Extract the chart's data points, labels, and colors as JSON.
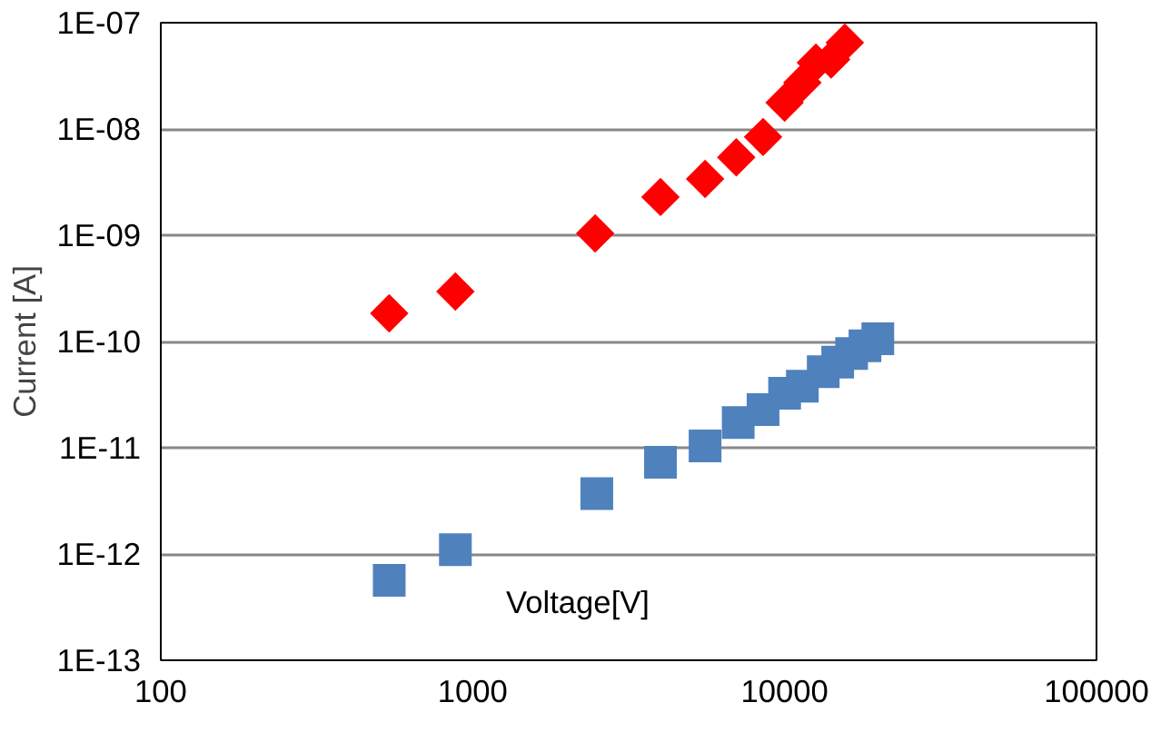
{
  "chart_data": {
    "type": "scatter",
    "xlabel": "Voltage[V]",
    "ylabel": "Current [A]",
    "log": "xy",
    "grid": "y",
    "xlim": [
      100,
      100000
    ],
    "xticks": [
      100,
      1000,
      10000,
      100000
    ],
    "ylim": [
      1e-13,
      1e-07
    ],
    "yticks": [
      {
        "value": 1e-13,
        "label": "1E-13"
      },
      {
        "value": 1e-12,
        "label": "1E-12"
      },
      {
        "value": 1e-11,
        "label": "1E-11"
      },
      {
        "value": 1e-10,
        "label": "1E-10"
      },
      {
        "value": 1e-09,
        "label": "1E-09"
      },
      {
        "value": 1e-08,
        "label": "1E-08"
      },
      {
        "value": 1e-07,
        "label": "1E-07"
      }
    ],
    "series": [
      {
        "color": "#ff0000",
        "marker": "diamond",
        "x": [
          540,
          880,
          2470,
          4000,
          5560,
          7000,
          8530,
          10000,
          11400,
          12600,
          14100,
          15600
        ],
        "values": [
          1.84e-10,
          2.95e-10,
          1.04e-09,
          2.29e-09,
          3.39e-09,
          5.4e-09,
          8.4e-09,
          1.77e-08,
          2.73e-08,
          4.2e-08,
          4.5e-08,
          6.5e-08
        ]
      },
      {
        "color": "#4f81bd",
        "marker": "square",
        "x": [
          540,
          880,
          2500,
          4000,
          5560,
          7100,
          8530,
          10000,
          11400,
          13300,
          14800,
          16400,
          18100,
          19900
        ],
        "values": [
          5.65e-13,
          1.1e-12,
          3.7e-12,
          7.3e-12,
          1.04e-11,
          1.73e-11,
          2.29e-11,
          3.26e-11,
          3.8e-11,
          5.2e-11,
          6.4e-11,
          7.7e-11,
          9.1e-11,
          1.06e-10
        ]
      }
    ]
  }
}
